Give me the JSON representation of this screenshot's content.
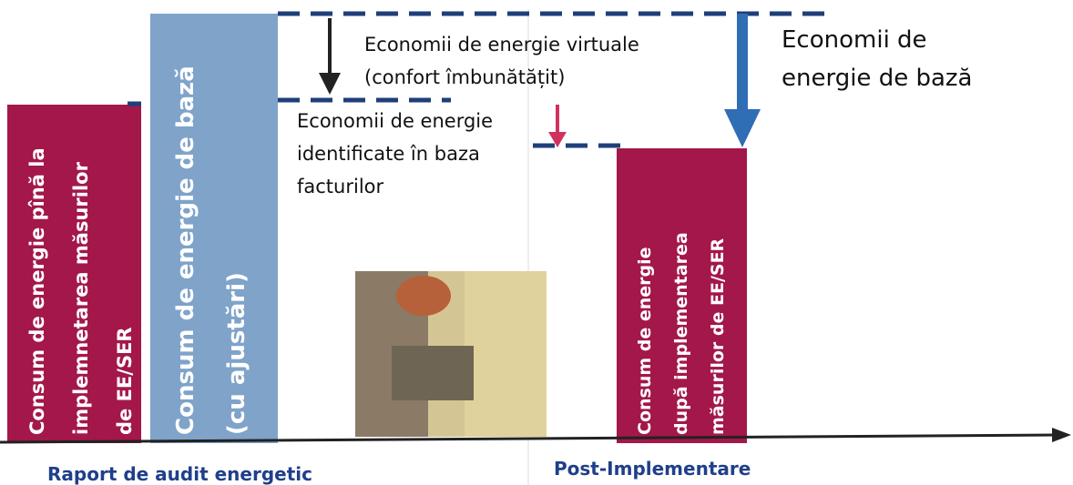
{
  "bars": [
    {
      "lines": [
        "Consum de energie pînă la",
        "implemnetarea măsurilor",
        "de EE/SER"
      ]
    },
    {
      "lines": [
        "Consum de energie de bază",
        "(cu ajustări)"
      ]
    },
    {
      "lines": [
        "Consum de energie",
        "după implementarea",
        "măsurilor de EE/SER"
      ]
    }
  ],
  "annotations": {
    "virtual_savings": [
      "Economii de energie virtuale",
      "(confort îmbunătățit)"
    ],
    "bill_savings": [
      "Economii de energie",
      "identificate în baza",
      "facturilor"
    ],
    "base_savings": [
      "Economii de",
      "energie de bază"
    ]
  },
  "axis_labels": [
    "Raport de audit energetic",
    "Post-Implementare"
  ]
}
